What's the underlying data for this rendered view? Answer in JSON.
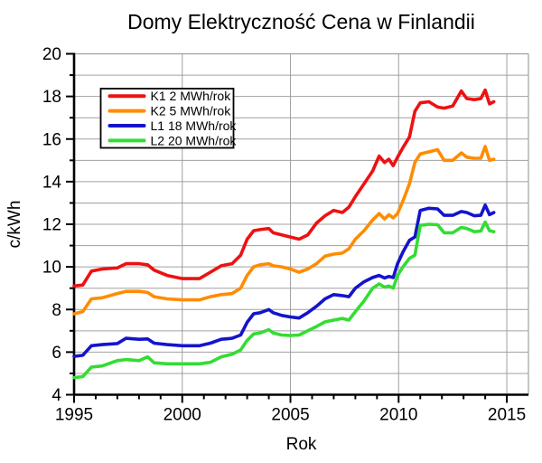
{
  "title": "Domy Elektryczność Cena w Finlandii",
  "legend": {
    "position": "upper-left",
    "entries": [
      "K1 2 MWh/rok",
      "K2 5 MWh/rok",
      "L1 18 MWh/rok",
      "L2 20 MWh/rok"
    ]
  },
  "colors": {
    "k1": "#ee1111",
    "k2": "#ff8c00",
    "l1": "#1414cc",
    "l2": "#33dd33",
    "grid": "#a0a0a0",
    "axis": "#000000"
  },
  "chart_data": {
    "type": "line",
    "title": "Domy Elektryczność Cena w Finlandii",
    "xlabel": "Rok",
    "ylabel": "c/kWh",
    "xlim": [
      1995,
      2016
    ],
    "ylim": [
      4,
      20
    ],
    "x_major_ticks": [
      1995,
      2000,
      2005,
      2010,
      2015
    ],
    "x_minor_step": 1,
    "y_major_ticks": [
      4,
      6,
      8,
      10,
      12,
      14,
      16,
      18,
      20
    ],
    "y_minor_step": 1,
    "grid": true,
    "legend_position": "upper-left",
    "x": [
      1995.0,
      1995.4,
      1995.8,
      1996.3,
      1997.0,
      1997.4,
      1998.0,
      1998.4,
      1998.7,
      1999.3,
      2000.0,
      2000.8,
      2001.3,
      2001.8,
      2002.3,
      2002.7,
      2003.0,
      2003.3,
      2003.6,
      2004.0,
      2004.2,
      2004.6,
      2005.0,
      2005.4,
      2005.8,
      2006.2,
      2006.6,
      2007.0,
      2007.4,
      2007.7,
      2008.0,
      2008.4,
      2008.8,
      2009.1,
      2009.35,
      2009.55,
      2009.75,
      2009.95,
      2010.2,
      2010.5,
      2010.75,
      2011.0,
      2011.4,
      2011.8,
      2012.1,
      2012.5,
      2012.9,
      2013.15,
      2013.5,
      2013.8,
      2014.0,
      2014.2,
      2014.4
    ],
    "series": [
      {
        "name": "K1 2 MWh/rok",
        "color": "#ee1111",
        "values": [
          9.1,
          9.15,
          9.8,
          9.9,
          9.95,
          10.15,
          10.15,
          10.1,
          9.85,
          9.6,
          9.45,
          9.45,
          9.75,
          10.05,
          10.15,
          10.55,
          11.3,
          11.7,
          11.75,
          11.8,
          11.6,
          11.5,
          11.4,
          11.3,
          11.5,
          12.05,
          12.4,
          12.65,
          12.55,
          12.8,
          13.3,
          13.9,
          14.5,
          15.2,
          14.9,
          15.05,
          14.75,
          15.15,
          15.6,
          16.1,
          17.3,
          17.7,
          17.75,
          17.5,
          17.45,
          17.55,
          18.25,
          17.9,
          17.85,
          17.9,
          18.3,
          17.65,
          17.75
        ]
      },
      {
        "name": "K2 5 MWh/rok",
        "color": "#ff8c00",
        "values": [
          7.8,
          7.9,
          8.5,
          8.55,
          8.75,
          8.85,
          8.85,
          8.8,
          8.6,
          8.5,
          8.45,
          8.45,
          8.6,
          8.7,
          8.75,
          9.0,
          9.6,
          10.0,
          10.1,
          10.15,
          10.05,
          10.0,
          9.9,
          9.75,
          9.9,
          10.15,
          10.5,
          10.6,
          10.65,
          10.85,
          11.3,
          11.7,
          12.2,
          12.5,
          12.25,
          12.45,
          12.3,
          12.5,
          13.1,
          13.9,
          14.9,
          15.3,
          15.4,
          15.5,
          15.0,
          15.0,
          15.35,
          15.15,
          15.1,
          15.1,
          15.65,
          15.0,
          15.05
        ]
      },
      {
        "name": "L1 18 MWh/rok",
        "color": "#1414cc",
        "values": [
          5.8,
          5.85,
          6.3,
          6.35,
          6.4,
          6.65,
          6.6,
          6.62,
          6.42,
          6.35,
          6.3,
          6.3,
          6.42,
          6.6,
          6.65,
          6.8,
          7.4,
          7.8,
          7.85,
          8.0,
          7.85,
          7.72,
          7.65,
          7.6,
          7.85,
          8.15,
          8.5,
          8.7,
          8.65,
          8.6,
          9.0,
          9.3,
          9.5,
          9.6,
          9.48,
          9.55,
          9.5,
          10.15,
          10.7,
          11.25,
          11.4,
          12.65,
          12.75,
          12.72,
          12.42,
          12.42,
          12.6,
          12.55,
          12.4,
          12.42,
          12.9,
          12.45,
          12.55
        ]
      },
      {
        "name": "L2 20 MWh/rok",
        "color": "#33dd33",
        "values": [
          4.8,
          4.85,
          5.3,
          5.35,
          5.6,
          5.65,
          5.6,
          5.78,
          5.5,
          5.45,
          5.45,
          5.45,
          5.52,
          5.78,
          5.9,
          6.1,
          6.55,
          6.85,
          6.9,
          7.05,
          6.9,
          6.8,
          6.78,
          6.8,
          7.0,
          7.2,
          7.42,
          7.5,
          7.58,
          7.5,
          7.9,
          8.4,
          9.0,
          9.2,
          9.05,
          9.1,
          9.0,
          9.6,
          10.0,
          10.4,
          10.55,
          11.95,
          12.0,
          11.98,
          11.6,
          11.6,
          11.85,
          11.8,
          11.65,
          11.68,
          12.1,
          11.7,
          11.65
        ]
      }
    ]
  }
}
